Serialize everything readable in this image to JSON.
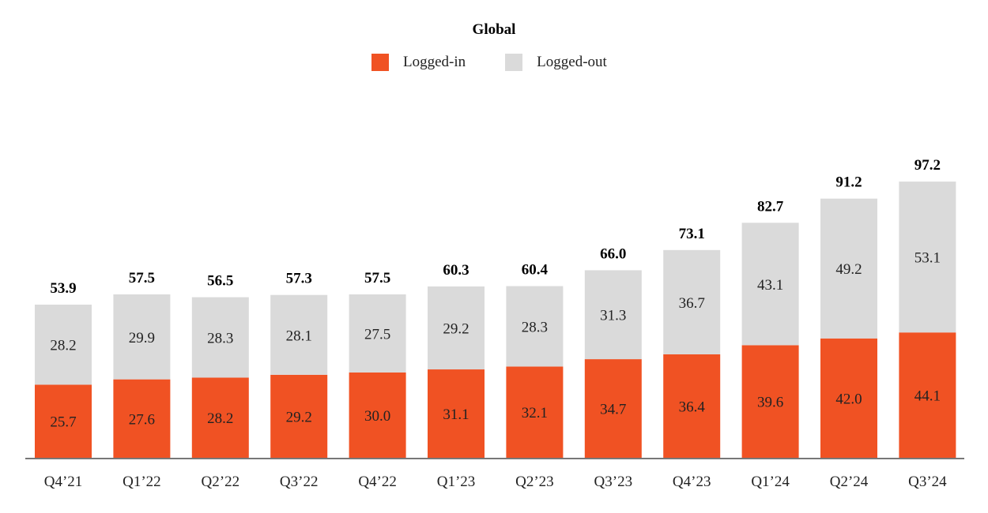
{
  "chart_data": {
    "type": "bar",
    "stacked": true,
    "title": "Global",
    "legend_position": "top-center",
    "grid": false,
    "ylim": [
      0,
      100
    ],
    "categories": [
      "Q4’21",
      "Q1’22",
      "Q2’22",
      "Q3’22",
      "Q4’22",
      "Q1’23",
      "Q2’23",
      "Q3’23",
      "Q4’23",
      "Q1’24",
      "Q2’24",
      "Q3’24"
    ],
    "series": [
      {
        "name": "Logged-in",
        "color": "#f05223",
        "values": [
          "25.7",
          "27.6",
          "28.2",
          "29.2",
          "30.0",
          "31.1",
          "32.1",
          "34.7",
          "36.4",
          "39.6",
          "42.0",
          "44.1"
        ]
      },
      {
        "name": "Logged-out",
        "color": "#dadada",
        "values": [
          "28.2",
          "29.9",
          "28.3",
          "28.1",
          "27.5",
          "29.2",
          "28.3",
          "31.3",
          "36.7",
          "43.1",
          "49.2",
          "53.1"
        ]
      }
    ],
    "totals": [
      "53.9",
      "57.5",
      "56.5",
      "57.3",
      "57.5",
      "60.3",
      "60.4",
      "66.0",
      "73.1",
      "82.7",
      "91.2",
      "97.2"
    ]
  }
}
